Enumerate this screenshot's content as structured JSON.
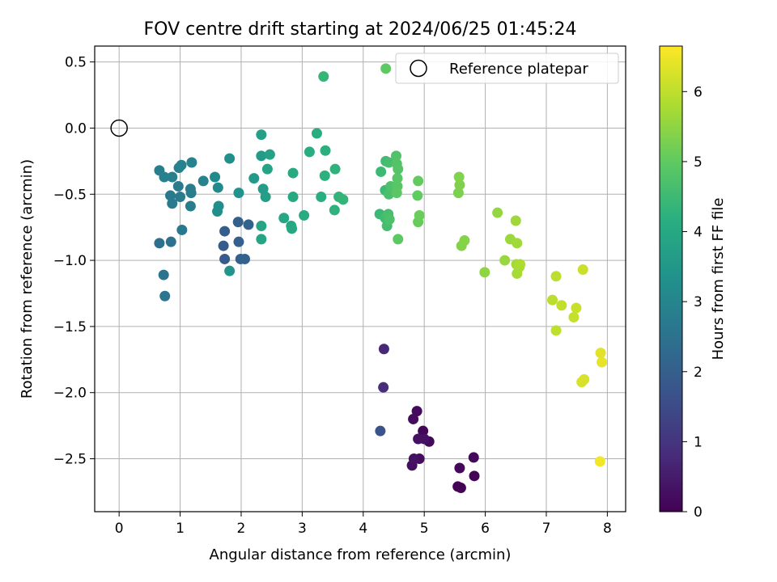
{
  "chart_data": {
    "type": "scatter",
    "title": "FOV centre drift starting at 2024/06/25 01:45:24",
    "xlabel": "Angular distance from reference (arcmin)",
    "ylabel": "Rotation from reference (arcmin)",
    "xlim": [
      -0.4,
      8.3
    ],
    "ylim": [
      -2.9,
      0.62
    ],
    "xticks": [
      0,
      1,
      2,
      3,
      4,
      5,
      6,
      7,
      8
    ],
    "yticks": [
      0.5,
      0.0,
      -0.5,
      -1.0,
      -1.5,
      -2.0,
      -2.5
    ],
    "grid": true,
    "legend": {
      "placement": "top-right",
      "entries": [
        "Reference platepar"
      ]
    },
    "reference_point": {
      "x": 0.0,
      "y": 0.0,
      "label": "Reference platepar"
    },
    "colormap": "viridis",
    "colorbar": {
      "label": "Hours from first FF file",
      "range": [
        0,
        6.65
      ],
      "ticks": [
        0,
        1,
        2,
        3,
        4,
        5,
        6
      ]
    },
    "points": [
      {
        "x": 4.98,
        "y": -2.29,
        "h": 0.1
      },
      {
        "x": 5.08,
        "y": -2.37,
        "h": 0.13
      },
      {
        "x": 4.88,
        "y": -2.14,
        "h": 0.17
      },
      {
        "x": 4.82,
        "y": -2.2,
        "h": 0.2
      },
      {
        "x": 4.92,
        "y": -2.5,
        "h": 0.22
      },
      {
        "x": 4.8,
        "y": -2.55,
        "h": 0.25
      },
      {
        "x": 4.9,
        "y": -2.35,
        "h": 0.28
      },
      {
        "x": 4.83,
        "y": -2.5,
        "h": 0.3
      },
      {
        "x": 5.0,
        "y": -2.35,
        "h": 0.33
      },
      {
        "x": 5.55,
        "y": -2.71,
        "h": 0.03
      },
      {
        "x": 5.6,
        "y": -2.72,
        "h": 0.05
      },
      {
        "x": 5.82,
        "y": -2.63,
        "h": 0.08
      },
      {
        "x": 5.58,
        "y": -2.57,
        "h": 0.12
      },
      {
        "x": 5.81,
        "y": -2.49,
        "h": 0.15
      },
      {
        "x": 4.34,
        "y": -1.67,
        "h": 0.75
      },
      {
        "x": 4.33,
        "y": -1.96,
        "h": 0.85
      },
      {
        "x": 4.28,
        "y": -2.29,
        "h": 1.7
      },
      {
        "x": 1.73,
        "y": -0.99,
        "h": 1.9
      },
      {
        "x": 1.71,
        "y": -0.89,
        "h": 1.93
      },
      {
        "x": 1.73,
        "y": -0.78,
        "h": 1.96
      },
      {
        "x": 1.96,
        "y": -0.86,
        "h": 1.99
      },
      {
        "x": 1.95,
        "y": -0.71,
        "h": 2.02
      },
      {
        "x": 1.99,
        "y": -0.99,
        "h": 2.05
      },
      {
        "x": 2.06,
        "y": -0.99,
        "h": 2.08
      },
      {
        "x": 2.12,
        "y": -0.73,
        "h": 2.11
      },
      {
        "x": 0.66,
        "y": -0.87,
        "h": 2.45
      },
      {
        "x": 0.85,
        "y": -0.86,
        "h": 2.5
      },
      {
        "x": 0.73,
        "y": -1.11,
        "h": 2.55
      },
      {
        "x": 0.75,
        "y": -1.27,
        "h": 2.6
      },
      {
        "x": 1.03,
        "y": -0.77,
        "h": 2.65
      },
      {
        "x": 0.87,
        "y": -0.57,
        "h": 2.7
      },
      {
        "x": 0.84,
        "y": -0.51,
        "h": 2.72
      },
      {
        "x": 1.0,
        "y": -0.52,
        "h": 2.74
      },
      {
        "x": 0.97,
        "y": -0.44,
        "h": 2.76
      },
      {
        "x": 1.17,
        "y": -0.59,
        "h": 2.78
      },
      {
        "x": 1.18,
        "y": -0.49,
        "h": 2.8
      },
      {
        "x": 1.17,
        "y": -0.46,
        "h": 2.82
      },
      {
        "x": 0.66,
        "y": -0.32,
        "h": 2.84
      },
      {
        "x": 0.74,
        "y": -0.37,
        "h": 2.86
      },
      {
        "x": 0.87,
        "y": -0.37,
        "h": 2.88
      },
      {
        "x": 0.98,
        "y": -0.3,
        "h": 2.9
      },
      {
        "x": 1.02,
        "y": -0.28,
        "h": 2.92
      },
      {
        "x": 1.19,
        "y": -0.26,
        "h": 2.94
      },
      {
        "x": 1.38,
        "y": -0.4,
        "h": 2.96
      },
      {
        "x": 1.57,
        "y": -0.37,
        "h": 3.1
      },
      {
        "x": 1.62,
        "y": -0.45,
        "h": 3.15
      },
      {
        "x": 1.63,
        "y": -0.59,
        "h": 3.2
      },
      {
        "x": 1.61,
        "y": -0.63,
        "h": 3.25
      },
      {
        "x": 1.81,
        "y": -0.23,
        "h": 3.3
      },
      {
        "x": 1.96,
        "y": -0.49,
        "h": 3.35
      },
      {
        "x": 1.81,
        "y": -1.08,
        "h": 3.4
      },
      {
        "x": 2.21,
        "y": -0.38,
        "h": 3.55
      },
      {
        "x": 2.33,
        "y": -0.21,
        "h": 3.6
      },
      {
        "x": 2.36,
        "y": -0.46,
        "h": 3.65
      },
      {
        "x": 2.4,
        "y": -0.52,
        "h": 3.7
      },
      {
        "x": 2.33,
        "y": -0.05,
        "h": 3.75
      },
      {
        "x": 2.47,
        "y": -0.2,
        "h": 3.8
      },
      {
        "x": 2.43,
        "y": -0.31,
        "h": 3.83
      },
      {
        "x": 2.33,
        "y": -0.74,
        "h": 3.86
      },
      {
        "x": 2.33,
        "y": -0.84,
        "h": 3.89
      },
      {
        "x": 2.7,
        "y": -0.68,
        "h": 3.92
      },
      {
        "x": 2.82,
        "y": -0.74,
        "h": 3.95
      },
      {
        "x": 2.83,
        "y": -0.76,
        "h": 3.98
      },
      {
        "x": 2.85,
        "y": -0.52,
        "h": 4.01
      },
      {
        "x": 2.85,
        "y": -0.34,
        "h": 4.04
      },
      {
        "x": 3.03,
        "y": -0.66,
        "h": 4.07
      },
      {
        "x": 3.12,
        "y": -0.18,
        "h": 4.1
      },
      {
        "x": 3.24,
        "y": -0.04,
        "h": 4.13
      },
      {
        "x": 3.31,
        "y": -0.52,
        "h": 4.16
      },
      {
        "x": 3.38,
        "y": -0.17,
        "h": 4.19
      },
      {
        "x": 3.37,
        "y": -0.36,
        "h": 4.22
      },
      {
        "x": 3.53,
        "y": -0.62,
        "h": 4.25
      },
      {
        "x": 3.54,
        "y": -0.31,
        "h": 4.28
      },
      {
        "x": 3.6,
        "y": -0.52,
        "h": 4.31
      },
      {
        "x": 3.67,
        "y": -0.54,
        "h": 4.34
      },
      {
        "x": 3.35,
        "y": 0.39,
        "h": 4.37
      },
      {
        "x": 4.27,
        "y": -0.65,
        "h": 4.45
      },
      {
        "x": 4.29,
        "y": -0.33,
        "h": 4.48
      },
      {
        "x": 4.36,
        "y": -0.47,
        "h": 4.51
      },
      {
        "x": 4.37,
        "y": -0.25,
        "h": 4.54
      },
      {
        "x": 4.36,
        "y": -0.68,
        "h": 4.57
      },
      {
        "x": 4.39,
        "y": -0.74,
        "h": 4.6
      },
      {
        "x": 4.42,
        "y": -0.26,
        "h": 4.63
      },
      {
        "x": 4.41,
        "y": -0.65,
        "h": 4.66
      },
      {
        "x": 4.42,
        "y": -0.5,
        "h": 4.69
      },
      {
        "x": 4.43,
        "y": -0.69,
        "h": 4.72
      },
      {
        "x": 4.45,
        "y": -0.44,
        "h": 4.75
      },
      {
        "x": 4.54,
        "y": -0.21,
        "h": 4.78
      },
      {
        "x": 4.55,
        "y": -0.27,
        "h": 4.81
      },
      {
        "x": 4.57,
        "y": -0.31,
        "h": 4.84
      },
      {
        "x": 4.56,
        "y": -0.38,
        "h": 4.87
      },
      {
        "x": 4.56,
        "y": -0.44,
        "h": 4.9
      },
      {
        "x": 4.55,
        "y": -0.49,
        "h": 4.93
      },
      {
        "x": 4.57,
        "y": -0.84,
        "h": 4.96
      },
      {
        "x": 4.37,
        "y": 0.45,
        "h": 4.99
      },
      {
        "x": 4.89,
        "y": -0.51,
        "h": 5.02
      },
      {
        "x": 4.9,
        "y": -0.4,
        "h": 5.05
      },
      {
        "x": 4.9,
        "y": -0.71,
        "h": 5.08
      },
      {
        "x": 4.92,
        "y": -0.66,
        "h": 5.11
      },
      {
        "x": 5.56,
        "y": -0.49,
        "h": 5.3
      },
      {
        "x": 5.58,
        "y": -0.43,
        "h": 5.33
      },
      {
        "x": 5.57,
        "y": -0.37,
        "h": 5.36
      },
      {
        "x": 5.61,
        "y": -0.89,
        "h": 5.39
      },
      {
        "x": 5.66,
        "y": -0.85,
        "h": 5.42
      },
      {
        "x": 5.99,
        "y": -1.09,
        "h": 5.5
      },
      {
        "x": 6.2,
        "y": -0.64,
        "h": 5.55
      },
      {
        "x": 6.32,
        "y": -1.0,
        "h": 5.6
      },
      {
        "x": 6.41,
        "y": -0.84,
        "h": 5.63
      },
      {
        "x": 6.5,
        "y": -0.7,
        "h": 5.66
      },
      {
        "x": 6.52,
        "y": -0.87,
        "h": 5.69
      },
      {
        "x": 6.51,
        "y": -1.03,
        "h": 5.72
      },
      {
        "x": 6.52,
        "y": -1.1,
        "h": 5.75
      },
      {
        "x": 6.56,
        "y": -1.05,
        "h": 5.78
      },
      {
        "x": 6.57,
        "y": -1.03,
        "h": 5.81
      },
      {
        "x": 7.1,
        "y": -1.3,
        "h": 5.95
      },
      {
        "x": 7.16,
        "y": -1.12,
        "h": 5.98
      },
      {
        "x": 7.16,
        "y": -1.53,
        "h": 6.01
      },
      {
        "x": 7.25,
        "y": -1.34,
        "h": 6.04
      },
      {
        "x": 7.45,
        "y": -1.43,
        "h": 6.07
      },
      {
        "x": 7.49,
        "y": -1.36,
        "h": 6.1
      },
      {
        "x": 7.6,
        "y": -1.07,
        "h": 6.13
      },
      {
        "x": 7.58,
        "y": -1.92,
        "h": 6.25
      },
      {
        "x": 7.62,
        "y": -1.9,
        "h": 6.28
      },
      {
        "x": 7.89,
        "y": -1.7,
        "h": 6.35
      },
      {
        "x": 7.91,
        "y": -1.77,
        "h": 6.4
      },
      {
        "x": 7.88,
        "y": -2.52,
        "h": 6.55
      }
    ]
  }
}
